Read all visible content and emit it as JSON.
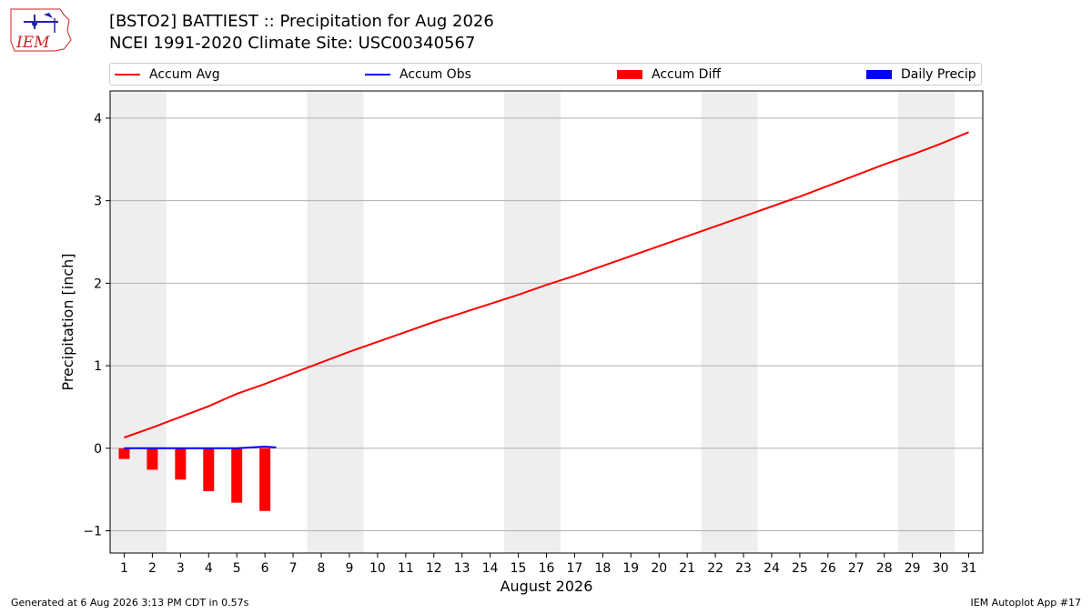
{
  "header": {
    "title_line1": "[BSTO2] BATTIEST :: Precipitation for Aug 2026",
    "title_line2": "NCEI 1991-2020 Climate Site: USC00340567",
    "logo_text": "IEM"
  },
  "footer": {
    "generated": "Generated at 6 Aug 2026 3:13 PM CDT in 0.57s",
    "app": "IEM Autoplot App #17"
  },
  "colors": {
    "avg": "#ff0000",
    "obs": "#0000ff",
    "diff": "#ff0000",
    "daily": "#0000ff",
    "weekend_band": "#eeeeee",
    "grid": "#b0b0b0"
  },
  "chart_data": {
    "type": "line",
    "xlabel": "August 2026",
    "ylabel": "Precipitation [inch]",
    "x": [
      1,
      2,
      3,
      4,
      5,
      6,
      7,
      8,
      9,
      10,
      11,
      12,
      13,
      14,
      15,
      16,
      17,
      18,
      19,
      20,
      21,
      22,
      23,
      24,
      25,
      26,
      27,
      28,
      29,
      30,
      31
    ],
    "xlim": [
      0.5,
      31.5
    ],
    "ylim": [
      -1.27,
      4.33
    ],
    "yticks": [
      -1,
      0,
      1,
      2,
      3,
      4
    ],
    "ytick_labels": [
      "−1",
      "0",
      "1",
      "2",
      "3",
      "4"
    ],
    "grid": "horizontal",
    "legend_position": "top",
    "weekend_bands": [
      [
        0.5,
        2.5
      ],
      [
        7.5,
        9.5
      ],
      [
        14.5,
        16.5
      ],
      [
        21.5,
        23.5
      ],
      [
        28.5,
        30.5
      ]
    ],
    "series": [
      {
        "name": "Accum Avg",
        "kind": "line",
        "x": [
          1,
          2,
          3,
          4,
          5,
          6,
          7,
          8,
          9,
          10,
          11,
          12,
          13,
          14,
          15,
          16,
          17,
          18,
          19,
          20,
          21,
          22,
          23,
          24,
          25,
          26,
          27,
          28,
          29,
          30,
          31
        ],
        "values": [
          0.13,
          0.25,
          0.38,
          0.51,
          0.66,
          0.78,
          0.91,
          1.04,
          1.17,
          1.29,
          1.41,
          1.53,
          1.64,
          1.75,
          1.86,
          1.98,
          2.09,
          2.21,
          2.33,
          2.45,
          2.57,
          2.69,
          2.81,
          2.93,
          3.05,
          3.18,
          3.31,
          3.44,
          3.56,
          3.69,
          3.83
        ]
      },
      {
        "name": "Accum Obs",
        "kind": "line",
        "x": [
          1,
          2,
          3,
          4,
          5,
          6,
          6.4
        ],
        "values": [
          0.0,
          0.0,
          0.0,
          0.0,
          0.0,
          0.02,
          0.01
        ]
      },
      {
        "name": "Accum Diff",
        "kind": "bar",
        "x": [
          1,
          2,
          3,
          4,
          5,
          6
        ],
        "values": [
          -0.13,
          -0.26,
          -0.38,
          -0.52,
          -0.66,
          -0.76
        ]
      },
      {
        "name": "Daily Precip",
        "kind": "bar",
        "x": [],
        "values": []
      }
    ]
  }
}
